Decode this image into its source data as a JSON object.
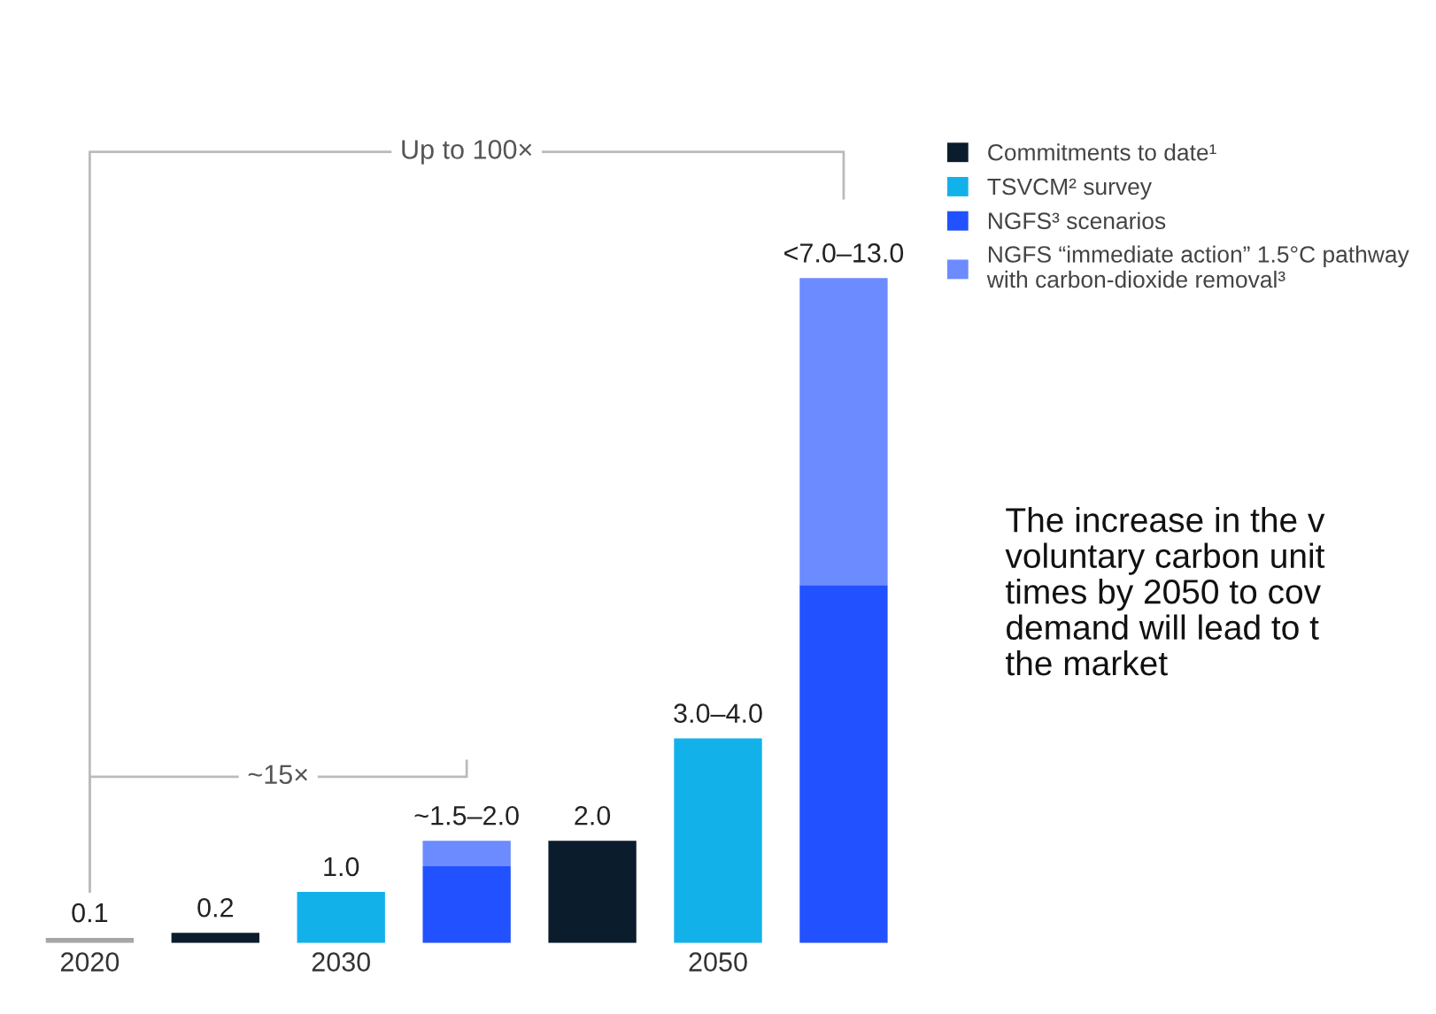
{
  "chart_data": {
    "type": "bar",
    "stacked": true,
    "categories": [
      "2020",
      null,
      "2030",
      null,
      null,
      "2050",
      null
    ],
    "series": [
      {
        "color": "#a6a6a6",
        "values": [
          0.1,
          null,
          null,
          null,
          null,
          null,
          null
        ],
        "value_labels": [
          "0.1",
          null,
          null,
          null,
          null,
          null,
          null
        ]
      },
      {
        "name": "Commitments to date¹",
        "color": "#0b1c2c",
        "values": [
          null,
          0.2,
          null,
          null,
          2.0,
          null,
          null
        ],
        "value_labels": [
          null,
          "0.2",
          null,
          null,
          "2.0",
          null,
          null
        ]
      },
      {
        "name": "TSVCM² survey",
        "color": "#13b1ea",
        "values": [
          null,
          null,
          1.0,
          null,
          null,
          4.0,
          null
        ],
        "value_labels": [
          null,
          null,
          "1.0",
          null,
          null,
          "3.0–4.0",
          null
        ]
      },
      {
        "name": "NGFS³ scenarios",
        "color": "#2251ff",
        "values": [
          null,
          null,
          null,
          1.5,
          null,
          null,
          7.0
        ]
      },
      {
        "name": "NGFS “immediate action” 1.5°C pathway\nwith carbon-dioxide removal³",
        "color": "#6b8bff",
        "values": [
          null,
          null,
          null,
          0.5,
          null,
          null,
          6.0
        ]
      }
    ],
    "totals": [
      null,
      null,
      null,
      "~1.5–2.0",
      null,
      null,
      "<7.0–13.0"
    ],
    "annotations": [
      "Up to 100×",
      "~15×",
      "The increase in the v\nvoluntary carbon unit\ntimes by 2050 to cov\ndemand will lead to t\nthe market"
    ],
    "legend": "top right",
    "grid": false
  }
}
